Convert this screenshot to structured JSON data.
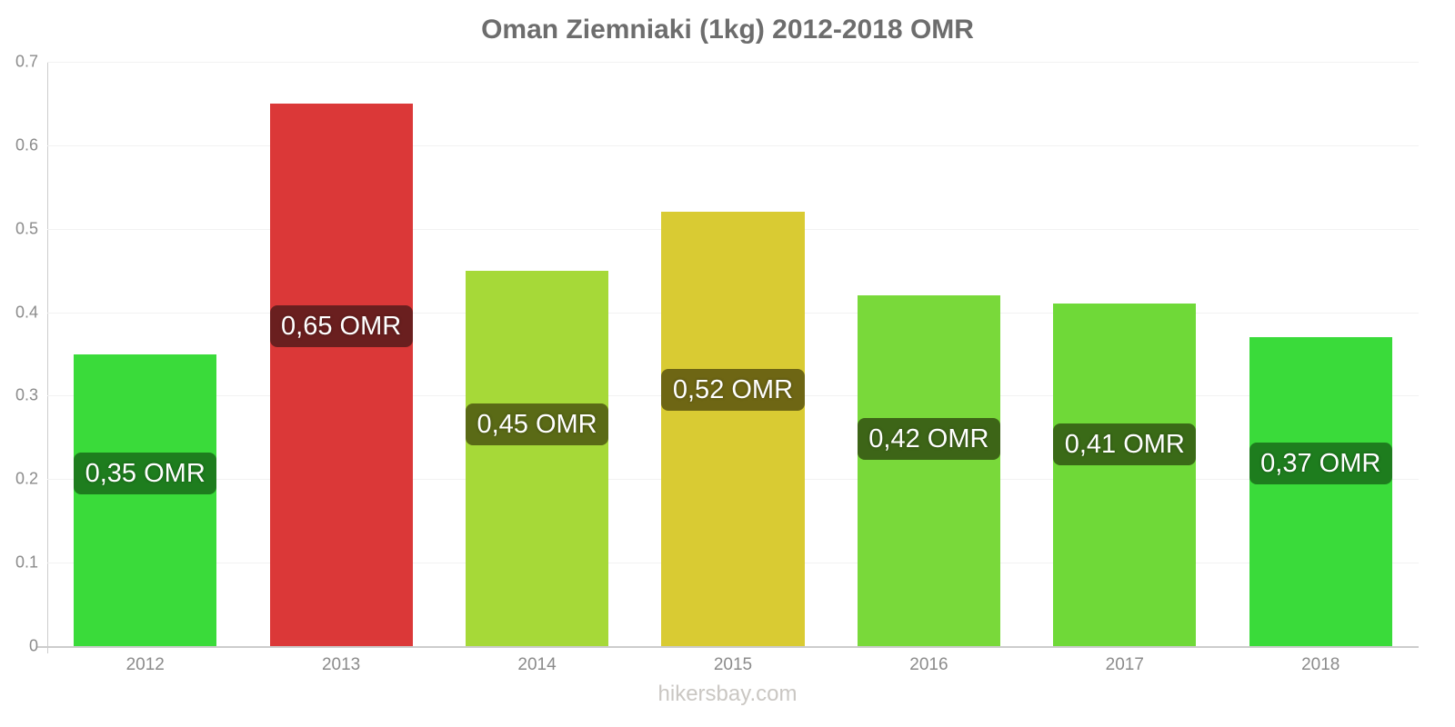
{
  "title": "Oman Ziemniaki (1kg) 2012-2018 OMR",
  "watermark": "hikersbay.com",
  "chart_data": {
    "type": "bar",
    "title": "Oman Ziemniaki (1kg) 2012-2018 OMR",
    "xlabel": "",
    "ylabel": "",
    "currency": "OMR",
    "categories": [
      "2012",
      "2013",
      "2014",
      "2015",
      "2016",
      "2017",
      "2018"
    ],
    "values": [
      0.35,
      0.65,
      0.45,
      0.52,
      0.42,
      0.41,
      0.37
    ],
    "value_labels": [
      "0,35 OMR",
      "0,65 OMR",
      "0,45 OMR",
      "0,52 OMR",
      "0,42 OMR",
      "0,41 OMR",
      "0,37 OMR"
    ],
    "bar_colors": [
      "#3adb3a",
      "#db3838",
      "#a6d938",
      "#d9cb33",
      "#79d93a",
      "#6fd938",
      "#3adb3a"
    ],
    "label_bg_colors": [
      "#1e7d1e",
      "#6a1f1f",
      "#5a6a16",
      "#6e6614",
      "#3d6517",
      "#3a6a17",
      "#1e7d1e"
    ],
    "ylim": [
      0,
      0.7
    ],
    "ytick_labels": [
      "0.7",
      "0.6",
      "0.5",
      "0.4",
      "0.3",
      "0.2",
      "0.1",
      "0"
    ],
    "grid": true,
    "legend_position": "none"
  },
  "colors": {
    "title": "#6d6d6d",
    "tick_label": "#8b8b8b",
    "axis_line": "#cccccc",
    "gridline": "#f2f2f2",
    "watermark": "#cac7c3",
    "value_text": "#ffffff"
  }
}
